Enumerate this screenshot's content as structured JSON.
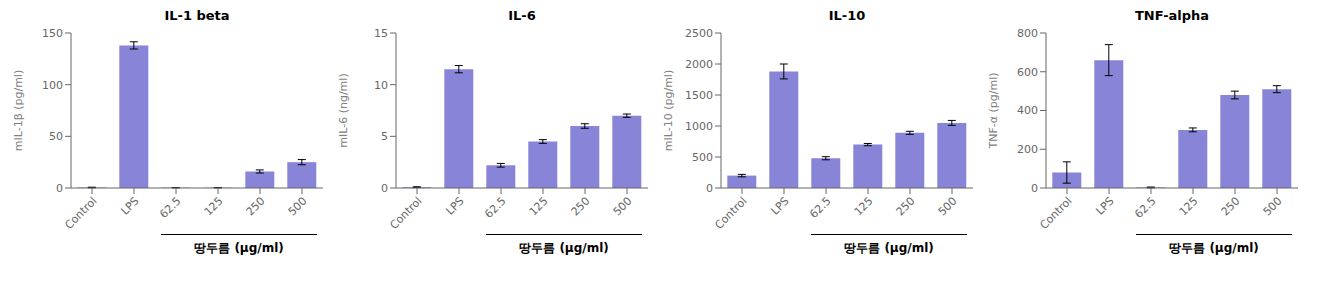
{
  "chart_data": [
    {
      "type": "bar",
      "title": "IL-1 beta",
      "ylabel": "mIL-1β (pg/ml)",
      "xlabel": "땅두름 (μg/ml)",
      "color": "#8884d8",
      "categories": [
        "Control",
        "LPS",
        "62.5",
        "125",
        "250",
        "500"
      ],
      "values": [
        0.5,
        138,
        0.3,
        0.3,
        16,
        25
      ],
      "errors": [
        0.3,
        3.5,
        0.15,
        0.15,
        1.5,
        2.5
      ],
      "ylim": [
        0,
        150
      ],
      "yticks": [
        0,
        50,
        100,
        150
      ]
    },
    {
      "type": "bar",
      "title": "IL-6",
      "ylabel": "mIL-6 (ng/ml)",
      "xlabel": "땅두름 (μg/ml)",
      "color": "#8884d8",
      "categories": [
        "Control",
        "LPS",
        "62.5",
        "125",
        "250",
        "500"
      ],
      "values": [
        0.08,
        11.5,
        2.2,
        4.5,
        6.0,
        7.0
      ],
      "errors": [
        0.04,
        0.35,
        0.18,
        0.18,
        0.22,
        0.16
      ],
      "ylim": [
        0,
        15
      ],
      "yticks": [
        0,
        5,
        10,
        15
      ]
    },
    {
      "type": "bar",
      "title": "IL-10",
      "ylabel": "mIL-10 (pg/ml)",
      "xlabel": "땅두름 (μg/ml)",
      "color": "#8884d8",
      "categories": [
        "Control",
        "LPS",
        "62.5",
        "125",
        "250",
        "500"
      ],
      "values": [
        200,
        1880,
        480,
        700,
        890,
        1050
      ],
      "errors": [
        20,
        120,
        25,
        18,
        25,
        40
      ],
      "ylim": [
        0,
        2500
      ],
      "yticks": [
        0,
        500,
        1000,
        1500,
        2000,
        2500
      ]
    },
    {
      "type": "bar",
      "title": "TNF-alpha",
      "ylabel": "TNF-α (pg/ml)",
      "xlabel": "땅두름 (μg/ml)",
      "color": "#8884d8",
      "categories": [
        "Control",
        "LPS",
        "62.5",
        "125",
        "250",
        "500"
      ],
      "values": [
        80,
        660,
        3,
        300,
        480,
        510
      ],
      "errors": [
        55,
        80,
        2,
        10,
        20,
        18
      ],
      "ylim": [
        0,
        800
      ],
      "yticks": [
        0,
        200,
        400,
        600,
        800
      ]
    }
  ]
}
